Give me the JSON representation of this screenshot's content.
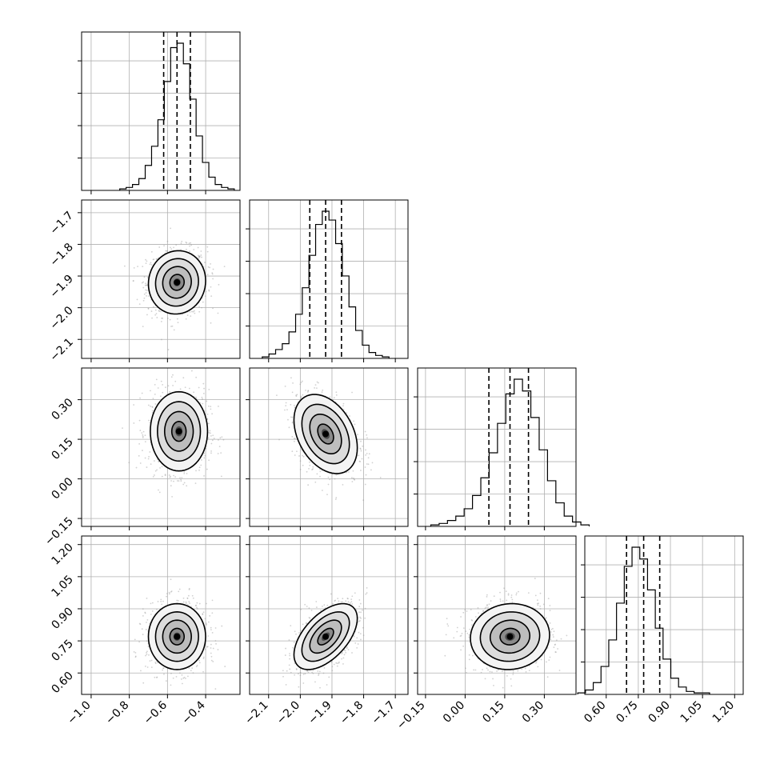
{
  "chart_data": {
    "type": "corner",
    "grid": true,
    "parameters": [
      {
        "index": 0,
        "axis_range": [
          -1.05,
          -0.22
        ],
        "ticks": [
          -1.0,
          -0.8,
          -0.6,
          -0.4
        ],
        "tick_labels": [
          "−1.0",
          "−0.8",
          "−0.6",
          "−0.4"
        ],
        "median": -0.55,
        "q16": -0.62,
        "q84": -0.48,
        "sigma": 0.075,
        "hist_counts": [
          1,
          2,
          4,
          8,
          17,
          30,
          48,
          74,
          97,
          100,
          86,
          62,
          37,
          19,
          9,
          4,
          2,
          1
        ]
      },
      {
        "index": 1,
        "axis_range": [
          -2.16,
          -1.66
        ],
        "ticks": [
          -2.1,
          -2.0,
          -1.9,
          -1.8,
          -1.7
        ],
        "tick_labels": [
          "−2.1",
          "−2.0",
          "−1.9",
          "−1.8",
          "−1.7"
        ],
        "median": -1.92,
        "q16": -1.97,
        "q84": -1.87,
        "sigma": 0.05,
        "hist_counts": [
          1,
          3,
          6,
          10,
          18,
          30,
          48,
          70,
          91,
          100,
          94,
          78,
          56,
          35,
          19,
          9,
          4,
          2,
          1
        ]
      },
      {
        "index": 2,
        "axis_range": [
          -0.18,
          0.42
        ],
        "ticks": [
          -0.15,
          0.0,
          0.15,
          0.3
        ],
        "tick_labels": [
          "−0.15",
          "0.00",
          "0.15",
          "0.30"
        ],
        "median": 0.17,
        "q16": 0.09,
        "q84": 0.24,
        "sigma": 0.075,
        "hist_counts": [
          1,
          2,
          4,
          7,
          12,
          21,
          33,
          50,
          70,
          90,
          100,
          92,
          74,
          52,
          31,
          16,
          7,
          3,
          1
        ]
      },
      {
        "index": 3,
        "axis_range": [
          0.5,
          1.24
        ],
        "ticks": [
          0.6,
          0.75,
          0.9,
          1.05,
          1.2
        ],
        "tick_labels": [
          "0.60",
          "0.75",
          "0.90",
          "1.05",
          "1.20"
        ],
        "median": 0.775,
        "q16": 0.695,
        "q84": 0.85,
        "sigma": 0.077,
        "hist_counts": [
          1,
          3,
          8,
          19,
          37,
          62,
          87,
          100,
          92,
          71,
          45,
          24,
          11,
          5,
          2,
          1,
          1
        ]
      }
    ],
    "pairs": [
      {
        "x": 0,
        "y": 1,
        "x_center": -0.55,
        "y_center": -1.92,
        "correlation": 0.05
      },
      {
        "x": 0,
        "y": 2,
        "x_center": -0.54,
        "y_center": 0.18,
        "correlation": 0.0
      },
      {
        "x": 1,
        "y": 2,
        "x_center": -1.92,
        "y_center": 0.17,
        "correlation": -0.35
      },
      {
        "x": 0,
        "y": 3,
        "x_center": -0.55,
        "y_center": 0.77,
        "correlation": 0.0
      },
      {
        "x": 1,
        "y": 3,
        "x_center": -1.92,
        "y_center": 0.77,
        "correlation": 0.55
      },
      {
        "x": 2,
        "y": 3,
        "x_center": 0.17,
        "y_center": 0.77,
        "correlation": 0.05
      }
    ],
    "contour_levels_sigma": [
      0.5,
      1.0,
      1.5,
      2.0
    ],
    "colors": {
      "scatter": "#9a9a9a",
      "contour": "#000000",
      "hist": "#000000",
      "grid": "#b0b0b0"
    }
  }
}
